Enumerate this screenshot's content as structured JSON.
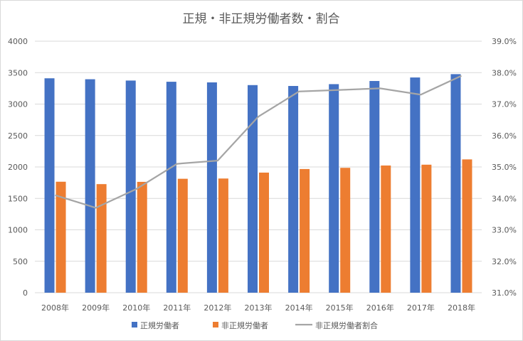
{
  "chart_data": {
    "type": "bar",
    "title": "正規・非正規労働者数・割合",
    "categories": [
      "2008年",
      "2009年",
      "2010年",
      "2011年",
      "2012年",
      "2013年",
      "2014年",
      "2015年",
      "2016年",
      "2017年",
      "2018年"
    ],
    "series": [
      {
        "name": "正規労働者",
        "type": "bar",
        "axis": "left",
        "color": "#4472c4",
        "values": [
          3410,
          3395,
          3374,
          3355,
          3345,
          3302,
          3288,
          3317,
          3367,
          3423,
          3476
        ]
      },
      {
        "name": "非正規労働者",
        "type": "bar",
        "axis": "left",
        "color": "#ed7d31",
        "values": [
          1765,
          1727,
          1763,
          1812,
          1816,
          1910,
          1967,
          1986,
          2023,
          2036,
          2120
        ]
      },
      {
        "name": "非正規労働者割合",
        "type": "line",
        "axis": "right",
        "color": "#a5a5a5",
        "values": [
          34.1,
          33.7,
          34.3,
          35.1,
          35.2,
          36.6,
          37.4,
          37.45,
          37.5,
          37.3,
          37.9
        ]
      }
    ],
    "ylim": [
      0,
      4000
    ],
    "yticks": [
      "0",
      "500",
      "1000",
      "1500",
      "2000",
      "2500",
      "3000",
      "3500",
      "4000"
    ],
    "y2lim": [
      31.0,
      39.0
    ],
    "y2ticks": [
      "31.0%",
      "32.0%",
      "33.0%",
      "34.0%",
      "35.0%",
      "36.0%",
      "37.0%",
      "38.0%",
      "39.0%"
    ],
    "grid": true,
    "legend": "bottom"
  }
}
